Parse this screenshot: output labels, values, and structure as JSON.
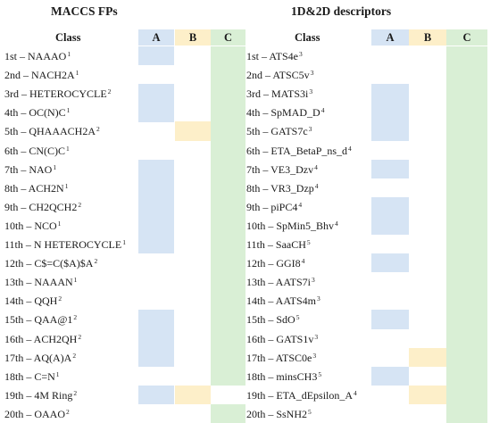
{
  "panels": [
    {
      "title": "MACCS FPs",
      "headers": {
        "class": "Class",
        "a": "A",
        "b": "B",
        "c": "C"
      },
      "rows": [
        {
          "label": "1st – NAAAO",
          "sup": "1",
          "a": true,
          "b": false,
          "c": true
        },
        {
          "label": "2nd – NACH2A",
          "sup": "1",
          "a": false,
          "b": false,
          "c": true
        },
        {
          "label": "3rd – HETEROCYCLE",
          "sup": "2",
          "a": true,
          "b": false,
          "c": true
        },
        {
          "label": "4th – OC(N)C",
          "sup": "1",
          "a": true,
          "b": false,
          "c": true
        },
        {
          "label": "5th – QHAAACH2A",
          "sup": "2",
          "a": false,
          "b": true,
          "c": true
        },
        {
          "label": "6th – CN(C)C",
          "sup": "1",
          "a": false,
          "b": false,
          "c": true
        },
        {
          "label": "7th – NAO",
          "sup": "1",
          "a": true,
          "b": false,
          "c": true
        },
        {
          "label": "8th – ACH2N",
          "sup": "1",
          "a": true,
          "b": false,
          "c": true
        },
        {
          "label": "9th – CH2QCH2",
          "sup": "2",
          "a": true,
          "b": false,
          "c": true
        },
        {
          "label": "10th – NCO",
          "sup": "1",
          "a": true,
          "b": false,
          "c": true
        },
        {
          "label": "11th – N HETEROCYCLE",
          "sup": "1",
          "a": true,
          "b": false,
          "c": true
        },
        {
          "label": "12th – C$=C($A)$A",
          "sup": "2",
          "a": false,
          "b": false,
          "c": true
        },
        {
          "label": "13th – NAAAN",
          "sup": "1",
          "a": false,
          "b": false,
          "c": true
        },
        {
          "label": "14th – QQH",
          "sup": "2",
          "a": false,
          "b": false,
          "c": true
        },
        {
          "label": "15th – QAA@1",
          "sup": "2",
          "a": true,
          "b": false,
          "c": true
        },
        {
          "label": "16th – ACH2QH",
          "sup": "2",
          "a": true,
          "b": false,
          "c": true
        },
        {
          "label": "17th – AQ(A)A",
          "sup": "2",
          "a": true,
          "b": false,
          "c": true
        },
        {
          "label": "18th – C=N",
          "sup": "1",
          "a": false,
          "b": false,
          "c": true
        },
        {
          "label": "19th – 4M Ring",
          "sup": "2",
          "a": true,
          "b": true,
          "c": false
        },
        {
          "label": "20th – OAAO",
          "sup": "2",
          "a": false,
          "b": false,
          "c": true
        }
      ]
    },
    {
      "title": "1D&2D descriptors",
      "headers": {
        "class": "Class",
        "a": "A",
        "b": "B",
        "c": "C"
      },
      "rows": [
        {
          "label": "1st – ATS4e",
          "sup": "3",
          "a": false,
          "b": false,
          "c": true
        },
        {
          "label": "2nd – ATSC5v",
          "sup": "3",
          "a": false,
          "b": false,
          "c": true
        },
        {
          "label": "3rd – MATS3i",
          "sup": "3",
          "a": true,
          "b": false,
          "c": true
        },
        {
          "label": "4th – SpMAD_D",
          "sup": "4",
          "a": true,
          "b": false,
          "c": true
        },
        {
          "label": "5th – GATS7c",
          "sup": "3",
          "a": true,
          "b": false,
          "c": true
        },
        {
          "label": "6th – ETA_BetaP_ns_d",
          "sup": "4",
          "a": false,
          "b": false,
          "c": true
        },
        {
          "label": "7th – VE3_Dzv",
          "sup": "4",
          "a": true,
          "b": false,
          "c": true
        },
        {
          "label": "8th – VR3_Dzp",
          "sup": "4",
          "a": false,
          "b": false,
          "c": true
        },
        {
          "label": "9th – piPC4",
          "sup": "4",
          "a": true,
          "b": false,
          "c": true
        },
        {
          "label": "10th – SpMin5_Bhv",
          "sup": "4",
          "a": true,
          "b": false,
          "c": true
        },
        {
          "label": "11th – SaaCH",
          "sup": "5",
          "a": false,
          "b": false,
          "c": true
        },
        {
          "label": "12th – GGI8",
          "sup": "4",
          "a": true,
          "b": false,
          "c": true
        },
        {
          "label": "13th – AATS7i",
          "sup": "3",
          "a": false,
          "b": false,
          "c": true
        },
        {
          "label": "14th – AATS4m",
          "sup": "3",
          "a": false,
          "b": false,
          "c": true
        },
        {
          "label": "15th – SdO",
          "sup": "5",
          "a": true,
          "b": false,
          "c": true
        },
        {
          "label": "16th – GATS1v",
          "sup": "3",
          "a": false,
          "b": false,
          "c": true
        },
        {
          "label": "17th – ATSC0e",
          "sup": "3",
          "a": false,
          "b": true,
          "c": true
        },
        {
          "label": "18th – minsCH3",
          "sup": "5",
          "a": true,
          "b": false,
          "c": true
        },
        {
          "label": "19th – ETA_dEpsilon_A",
          "sup": "4",
          "a": false,
          "b": true,
          "c": true
        },
        {
          "label": "20th – SsNH2",
          "sup": "5",
          "a": false,
          "b": false,
          "c": true
        }
      ]
    }
  ]
}
